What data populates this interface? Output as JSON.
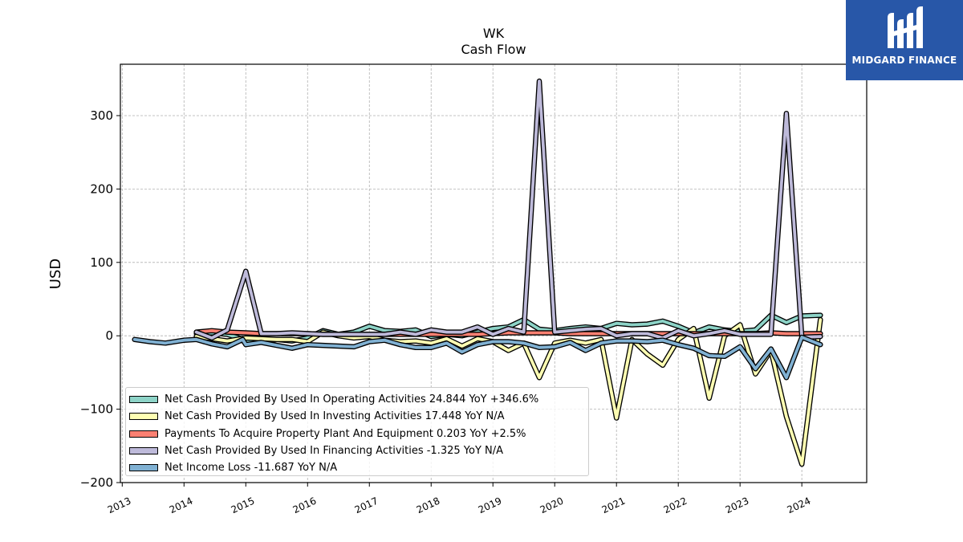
{
  "chart_data": {
    "type": "line",
    "title": "WK",
    "subtitle": "Cash Flow",
    "xlabel": "",
    "ylabel": "USD",
    "ylim": [
      -200,
      370
    ],
    "xlim": [
      2012.97,
      2025.05
    ],
    "yticks": [
      -200,
      -100,
      0,
      100,
      200,
      300
    ],
    "ytick_labels": [
      "−200",
      "−100",
      "0",
      "100",
      "200",
      "300"
    ],
    "xticks": [
      2013,
      2014,
      2015,
      2016,
      2017,
      2018,
      2019,
      2020,
      2021,
      2022,
      2023,
      2024
    ],
    "grid": true,
    "legend_position": "lower-left",
    "series": [
      {
        "name": "Net Cash Provided By Used In Operating Activities",
        "legend_text": "Net Cash Provided By Used In Operating Activities  24.844 YoY +346.6%",
        "color": "#8dd3c7",
        "x": [
          2014.2,
          2014.45,
          2014.7,
          2015.0,
          2015.25,
          2015.5,
          2015.75,
          2016.0,
          2016.25,
          2016.5,
          2016.75,
          2017.0,
          2017.25,
          2017.5,
          2017.75,
          2018.0,
          2018.25,
          2018.5,
          2018.75,
          2019.0,
          2019.25,
          2019.5,
          2019.75,
          2020.0,
          2020.25,
          2020.5,
          2020.75,
          2021.0,
          2021.25,
          2021.5,
          2021.75,
          2022.0,
          2022.25,
          2022.5,
          2022.75,
          2023.0,
          2023.25,
          2023.5,
          2023.75,
          2024.0,
          2024.3
        ],
        "y": [
          3,
          4,
          2,
          -6,
          -8,
          -5,
          -7,
          -3,
          7,
          2,
          5,
          13,
          7,
          6,
          8,
          -1,
          2,
          0,
          5,
          10,
          12,
          22,
          9,
          7,
          10,
          12,
          10,
          17,
          15,
          16,
          20,
          13,
          4,
          12,
          8,
          6,
          8,
          28,
          18,
          27,
          28
        ]
      },
      {
        "name": "Net Cash Provided By Used In Investing Activities",
        "legend_text": "Net Cash Provided By Used In Investing Activities  17.448 YoY N/A",
        "color": "#ffffb3",
        "x": [
          2014.2,
          2014.45,
          2014.7,
          2015.0,
          2015.25,
          2015.5,
          2015.75,
          2016.0,
          2016.25,
          2016.5,
          2016.75,
          2017.0,
          2017.25,
          2017.5,
          2017.75,
          2018.0,
          2018.25,
          2018.5,
          2018.75,
          2019.0,
          2019.25,
          2019.5,
          2019.75,
          2020.0,
          2020.25,
          2020.5,
          2020.75,
          2021.0,
          2021.25,
          2021.5,
          2021.75,
          2022.0,
          2022.25,
          2022.5,
          2022.75,
          2023.0,
          2023.25,
          2023.5,
          2023.75,
          2024.0,
          2024.3
        ],
        "y": [
          -1,
          -4,
          -7,
          -3,
          -4,
          -5,
          -5,
          -8,
          5,
          0,
          -3,
          -1,
          -6,
          -8,
          -7,
          -10,
          -4,
          -14,
          -4,
          -8,
          -20,
          -10,
          -57,
          -10,
          -6,
          -10,
          -5,
          -112,
          -5,
          -25,
          -40,
          -5,
          10,
          -85,
          0,
          15,
          -52,
          -20,
          -110,
          -175,
          22
        ]
      },
      {
        "name": "Payments To Acquire Property Plant And Equipment",
        "legend_text": "Payments To Acquire Property Plant And Equipment  0.203 YoY +2.5%",
        "color": "#fb8072",
        "x": [
          2014.2,
          2014.45,
          2014.7,
          2015.0,
          2015.25,
          2015.5,
          2015.75,
          2016.0,
          2016.25,
          2016.5,
          2016.75,
          2017.0,
          2017.25,
          2017.5,
          2017.75,
          2018.0,
          2018.25,
          2018.5,
          2018.75,
          2019.0,
          2019.25,
          2019.5,
          2019.75,
          2020.0,
          2020.25,
          2020.5,
          2020.75,
          2021.0,
          2021.25,
          2021.5,
          2021.75,
          2022.0,
          2022.25,
          2022.5,
          2022.75,
          2023.0,
          2023.25,
          2023.5,
          2023.75,
          2024.0,
          2024.3
        ],
        "y": [
          5,
          7,
          5,
          4,
          3,
          3,
          3,
          3,
          2,
          2,
          2,
          2,
          2,
          2,
          2,
          2,
          2,
          2,
          2,
          3,
          4,
          4,
          4,
          4,
          3,
          3,
          3,
          3,
          3,
          3,
          3,
          3,
          3,
          3,
          3,
          3,
          3,
          4,
          3,
          3,
          3
        ]
      },
      {
        "name": "Net Cash Provided By Used In Financing Activities",
        "legend_text": "Net Cash Provided By Used In Financing Activities  -1.325 YoY N/A",
        "color": "#bebada",
        "x": [
          2014.2,
          2014.45,
          2014.7,
          2015.0,
          2015.25,
          2015.5,
          2015.75,
          2016.0,
          2016.25,
          2016.5,
          2016.75,
          2017.0,
          2017.25,
          2017.5,
          2017.75,
          2018.0,
          2018.25,
          2018.5,
          2018.75,
          2019.0,
          2019.25,
          2019.5,
          2019.75,
          2020.0,
          2020.25,
          2020.5,
          2020.75,
          2021.0,
          2021.25,
          2021.5,
          2021.75,
          2022.0,
          2022.25,
          2022.5,
          2022.75,
          2023.0,
          2023.25,
          2023.5,
          2023.75,
          2024.0,
          2024.3
        ],
        "y": [
          5,
          -3,
          8,
          88,
          3,
          3,
          4,
          3,
          2,
          2,
          2,
          2,
          2,
          5,
          2,
          8,
          5,
          5,
          12,
          2,
          10,
          5,
          347,
          5,
          7,
          9,
          10,
          0,
          3,
          3,
          -3,
          7,
          0,
          3,
          7,
          2,
          2,
          2,
          303,
          -2,
          -1
        ]
      },
      {
        "name": "Net Income Loss",
        "legend_text": "Net Income Loss  -11.687 YoY N/A",
        "color": "#80b1d3",
        "x": [
          2013.2,
          2013.45,
          2013.7,
          2014.0,
          2014.2,
          2014.45,
          2014.7,
          2014.95,
          2015.0,
          2015.25,
          2015.5,
          2015.75,
          2016.0,
          2016.25,
          2016.5,
          2016.75,
          2017.0,
          2017.25,
          2017.5,
          2017.75,
          2018.0,
          2018.25,
          2018.5,
          2018.75,
          2019.0,
          2019.25,
          2019.5,
          2019.75,
          2020.0,
          2020.25,
          2020.5,
          2020.75,
          2021.0,
          2021.25,
          2021.5,
          2021.75,
          2022.0,
          2022.25,
          2022.5,
          2022.75,
          2023.0,
          2023.25,
          2023.5,
          2023.75,
          2024.0,
          2024.3
        ],
        "y": [
          -5,
          -8,
          -10,
          -6,
          -5,
          -11,
          -15,
          -5,
          -12,
          -9,
          -13,
          -17,
          -12,
          -13,
          -14,
          -15,
          -8,
          -6,
          -12,
          -16,
          -16,
          -10,
          -22,
          -12,
          -8,
          -8,
          -10,
          -16,
          -15,
          -9,
          -20,
          -10,
          -7,
          -7,
          -8,
          -6,
          -12,
          -17,
          -27,
          -28,
          -15,
          -45,
          -18,
          -57,
          -2,
          -12
        ]
      }
    ]
  },
  "logo": {
    "text": "MIDGARD FINANCE"
  }
}
